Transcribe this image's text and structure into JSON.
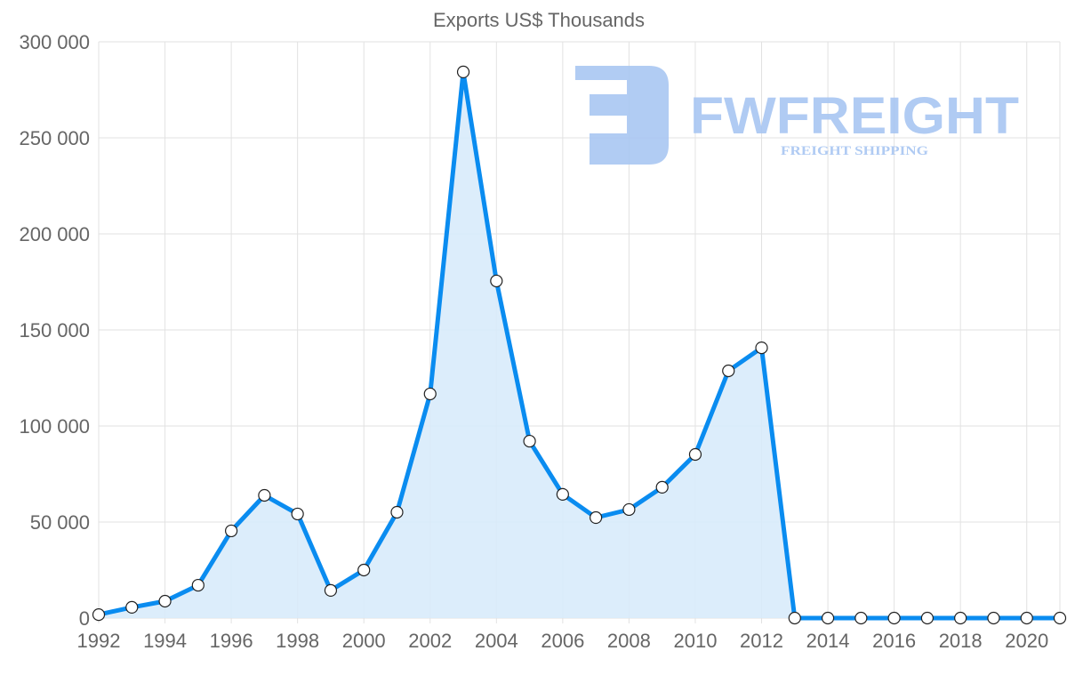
{
  "chart_data": {
    "type": "line",
    "title": "Exports US$ Thousands",
    "xlabel": "",
    "ylabel": "",
    "x": [
      1992,
      1993,
      1994,
      1995,
      1996,
      1997,
      1998,
      1999,
      2000,
      2001,
      2002,
      2003,
      2004,
      2005,
      2006,
      2007,
      2008,
      2009,
      2010,
      2011,
      2012,
      2013,
      2014,
      2015,
      2016,
      2017,
      2018,
      2019,
      2020,
      2021
    ],
    "series": [
      {
        "name": "Exports US$ Thousands",
        "values": [
          1800,
          5600,
          8800,
          17100,
          45400,
          63900,
          54200,
          14400,
          25000,
          55100,
          116700,
          284300,
          175500,
          92100,
          64400,
          52300,
          56500,
          68100,
          85200,
          128700,
          140700,
          0,
          0,
          0,
          0,
          0,
          0,
          0,
          0,
          0
        ]
      }
    ],
    "ylim": [
      0,
      300000
    ],
    "yticks": [
      0,
      50000,
      100000,
      150000,
      200000,
      250000,
      300000
    ],
    "ytick_labels": [
      "0",
      "50 000",
      "100 000",
      "150 000",
      "200 000",
      "250 000",
      "300 000"
    ],
    "xticks": [
      1992,
      1994,
      1996,
      1998,
      2000,
      2002,
      2004,
      2006,
      2008,
      2010,
      2012,
      2014,
      2016,
      2018,
      2020
    ],
    "xtick_labels": [
      "1992",
      "1994",
      "1996",
      "1998",
      "2000",
      "2002",
      "2004",
      "2006",
      "2008",
      "2010",
      "2012",
      "2014",
      "2016",
      "2018",
      "2020"
    ],
    "grid": true,
    "fill": true,
    "colors": {
      "line": "#0a8cf0",
      "fill": "#d8ebfb",
      "grid": "#e2e2e2",
      "text": "#666666"
    }
  },
  "watermark": {
    "brand": "FWFREIGHT",
    "tagline": "FREIGHT SHIPPING",
    "color": "#a8c6f2"
  }
}
